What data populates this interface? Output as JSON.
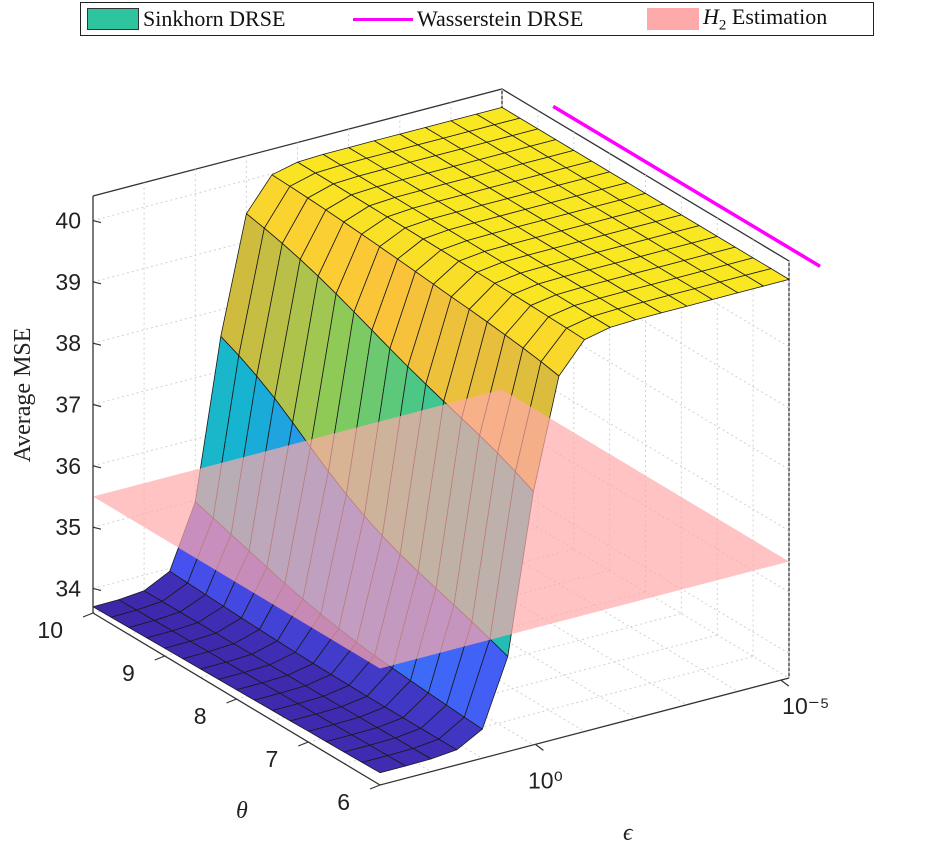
{
  "chart_data": {
    "type": "surface3d",
    "title": "",
    "legend": {
      "placement": "top",
      "items": [
        {
          "label": "Sinkhorn DRSE",
          "kind": "surface",
          "color": "#2fc4a0"
        },
        {
          "label": "Wasserstein DRSE",
          "kind": "line",
          "color": "#ff00ff"
        },
        {
          "label": "Estimation",
          "math": "H",
          "math_sub": "2",
          "kind": "plane",
          "color": "#ffaaaa"
        }
      ]
    },
    "axes": {
      "z": {
        "label": "Average MSE",
        "ticks": [
          "34",
          "35",
          "36",
          "37",
          "38",
          "39",
          "40"
        ],
        "range": [
          33.6,
          40.4
        ]
      },
      "theta": {
        "label": "θ",
        "ticks": [
          "6",
          "7",
          "8",
          "9",
          "10"
        ],
        "range": [
          6,
          10
        ]
      },
      "epsilon": {
        "label": "ϵ",
        "scale": "log",
        "ticks": [
          "10⁰",
          "10⁻⁵"
        ],
        "range": [
          1,
          1e-05
        ]
      }
    },
    "grid": true,
    "colormap": [
      "#3e26a8",
      "#4755f5",
      "#2e87f7",
      "#16b4d1",
      "#30c59a",
      "#8ccb58",
      "#d2bb3e",
      "#fbc33a",
      "#f9e721"
    ],
    "surface": {
      "n_theta": 17,
      "n_eps": 17,
      "theta_values": [
        6,
        10
      ],
      "low_mse_large_epsilon": 33.7,
      "high_mse_small_epsilon": 40.1,
      "transition_log10_epsilon": -1.0
    },
    "wasserstein_line": {
      "average_mse": 40.1,
      "epsilon": 1e-06
    },
    "h2_plane": {
      "average_mse": 35.5
    }
  }
}
